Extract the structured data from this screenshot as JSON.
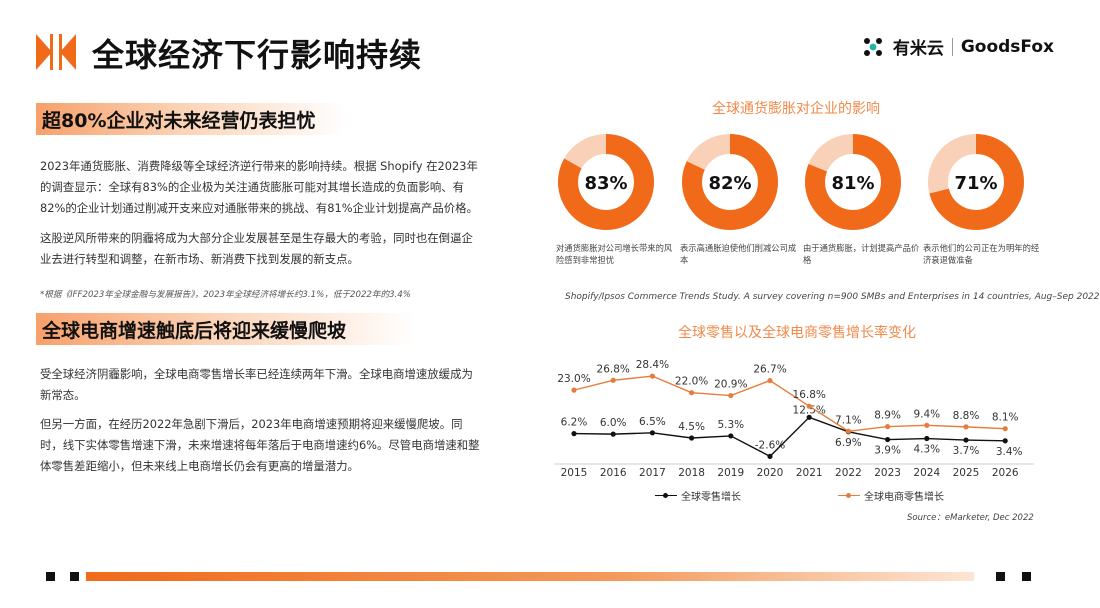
{
  "header": {
    "title": "全球经济下行影响持续",
    "brand_cn": "有米云",
    "brand_en": "GoodsFox"
  },
  "section1": {
    "heading": "超80%企业对未来经营仍表担忧",
    "para1": "2023年通货膨胀、消费降级等全球经济逆行带来的影响持续。根据 Shopify 在2023年的调查显示：全球有83%的企业极为关注通货膨胀可能对其增长造成的负面影响、有82%的企业计划通过削减开支来应对通胀带来的挑战、有81%企业计划提高产品价格。",
    "para2": "这股逆风所带来的阴霾将成为大部分企业发展甚至是生存最大的考验，同时也在倒逼企业去进行转型和调整，在新市场、新消费下找到发展的新支点。",
    "note": "*根据《IFF2023年全球金融与发展报告》，2023年全球经济将增长约3.1%，低于2022年的3.4%"
  },
  "section2": {
    "heading": "全球电商增速触底后将迎来缓慢爬坡",
    "para1": "受全球经济阴霾影响，全球电商零售增长率已经连续两年下滑。全球电商增速放缓成为新常态。",
    "para2": "但另一方面，在经历2022年急剧下滑后，2023年电商增速预期将迎来缓慢爬坡。同时，线下实体零售增速下滑，未来增速将每年落后于电商增速约6%。尽管电商增速和整体零售差距缩小，但未来线上电商增长仍会有更高的增量潜力。"
  },
  "colors": {
    "accent": "#f06a1a",
    "ring_bg": "#f9d0b8",
    "ecom_line": "#e87b3e",
    "retail_line": "#111111"
  },
  "chart_data": [
    {
      "type": "pie",
      "title": "全球通货膨胀对企业的影响",
      "source": "Shopify/Ipsos Commerce Trends Study. A survey covering n=900 SMBs and Enterprises in 14 countries, Aug–Sep 2022",
      "items": [
        {
          "value": 83,
          "label_text": "83%",
          "caption": "对通货膨胀对公司增长带来的风险感到非常担忧"
        },
        {
          "value": 82,
          "label_text": "82%",
          "caption": "表示高通胀迫使他们削减公司成本"
        },
        {
          "value": 81,
          "label_text": "81%",
          "caption": "由于通货膨胀，计划提高产品价格"
        },
        {
          "value": 71,
          "label_text": "71%",
          "caption": "表示他们的公司正在为明年的经济衰退做准备"
        }
      ]
    },
    {
      "type": "line",
      "title": "全球零售以及全球电商零售增长率变化",
      "source": "Source：eMarketer, Dec 2022",
      "x": [
        "2015",
        "2016",
        "2017",
        "2018",
        "2019",
        "2020",
        "2021",
        "2022",
        "2023",
        "2024",
        "2025",
        "2026"
      ],
      "series": [
        {
          "name": "全球零售增长",
          "values": [
            6.2,
            6.0,
            6.5,
            4.5,
            5.3,
            -2.6,
            12.5,
            6.9,
            3.9,
            4.3,
            3.7,
            3.4
          ],
          "labels": [
            "6.2%",
            "6.0%",
            "6.5%",
            "4.5%",
            "5.3%",
            "-2.6%",
            "12.5%",
            "6.9%",
            "3.9%",
            "4.3%",
            "3.7%",
            "3.4%"
          ]
        },
        {
          "name": "全球电商零售增长",
          "values": [
            23.0,
            26.8,
            28.4,
            22.0,
            20.9,
            26.7,
            16.8,
            7.1,
            8.9,
            9.4,
            8.8,
            8.1
          ],
          "labels": [
            "23.0%",
            "26.8%",
            "28.4%",
            "22.0%",
            "20.9%",
            "26.7%",
            "16.8%",
            "7.1%",
            "8.9%",
            "9.4%",
            "8.8%",
            "8.1%"
          ]
        }
      ],
      "ylim": [
        -4,
        30
      ],
      "grid": false,
      "legend": "bottom"
    }
  ]
}
